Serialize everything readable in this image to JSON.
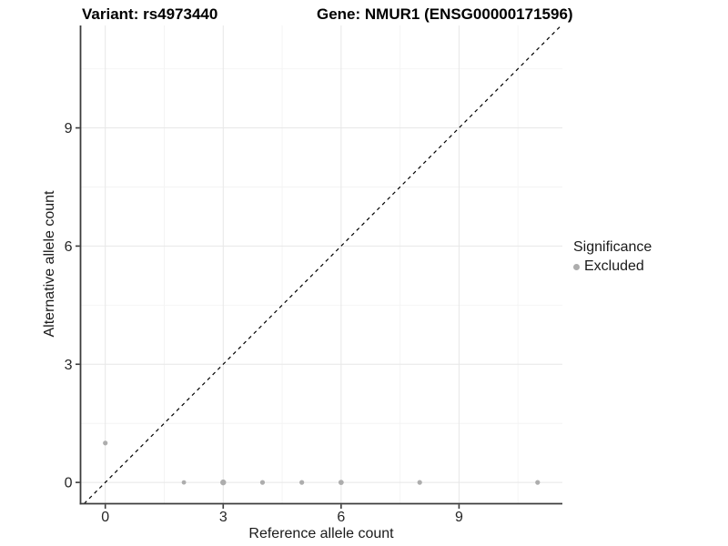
{
  "titles": {
    "variant": "Variant: rs4973440",
    "gene": "Gene: NMUR1 (ENSG00000171596)"
  },
  "legend": {
    "title": "Significance",
    "items": [
      {
        "label": "Excluded",
        "color": "#adadad"
      }
    ]
  },
  "chart_data": {
    "type": "scatter",
    "title_left": "Variant: rs4973440",
    "title_right": "Gene: NMUR1 (ENSG00000171596)",
    "xlabel": "Reference allele count",
    "ylabel": "Alternative allele count",
    "xlim": [
      -0.63,
      11.63
    ],
    "ylim": [
      -0.54,
      11.6
    ],
    "x_major_ticks": [
      0,
      3,
      6,
      9
    ],
    "y_major_ticks": [
      0,
      3,
      6,
      9
    ],
    "x_minor_gridlines": [
      1.5,
      4.5,
      7.5,
      10.5
    ],
    "y_minor_gridlines": [
      1.5,
      4.5,
      7.5,
      10.5
    ],
    "grid": "on",
    "legend_position": "right",
    "identity_line": {
      "style": "dashed",
      "equation": "y = x"
    },
    "series": [
      {
        "name": "Excluded",
        "color": "#adadad",
        "points": [
          {
            "x": 0,
            "y": 1,
            "r": 2.6
          },
          {
            "x": 2,
            "y": 0,
            "r": 2.4
          },
          {
            "x": 3,
            "y": 0,
            "r": 3.2
          },
          {
            "x": 4,
            "y": 0,
            "r": 2.6
          },
          {
            "x": 5,
            "y": 0,
            "r": 2.6
          },
          {
            "x": 6,
            "y": 0,
            "r": 2.9
          },
          {
            "x": 8,
            "y": 0,
            "r": 2.6
          },
          {
            "x": 11,
            "y": 0,
            "r": 2.6
          }
        ]
      }
    ],
    "colors": {
      "point": "#adadad",
      "axis": "#3c3c3c",
      "grid_major": "#e7e7e7",
      "grid_minor": "#f4f4f4",
      "tick_text": "#262626",
      "identity": "#000000"
    }
  }
}
